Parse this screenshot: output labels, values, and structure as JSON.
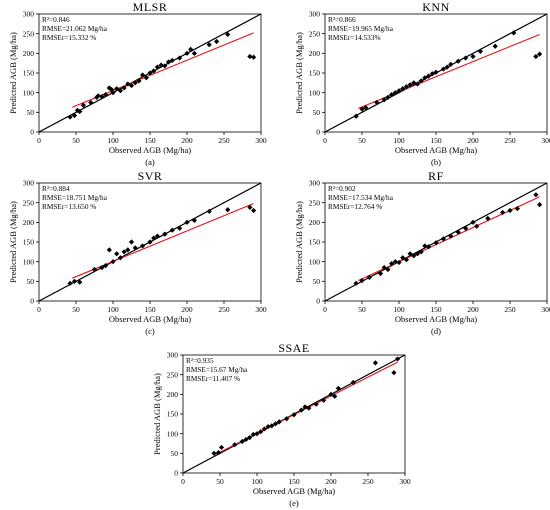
{
  "colors": {
    "points": "#000000",
    "one_to_one_line": "#000000",
    "fit_line": "#e8101a",
    "axes": "#000000",
    "background": "#ffffff"
  },
  "chart_data": [
    {
      "type": "scatter",
      "title": "MLSR",
      "panel_label": "(a)",
      "xlabel": "Observed AGB (Mg/ha)",
      "ylabel": "Predicted AGB (Mg/ha)",
      "xlim": [
        0,
        300
      ],
      "ylim": [
        0,
        300
      ],
      "xticks": [
        "0",
        "50",
        "100",
        "150",
        "200",
        "250",
        "300"
      ],
      "yticks": [
        "0",
        "50",
        "100",
        "150",
        "200",
        "250",
        "300"
      ],
      "stats": [
        "R²=0.846",
        "RMSE=21.062 Mg/ha",
        "RMSEr=15.332 %"
      ],
      "one_to_one": [
        [
          0,
          0
        ],
        [
          300,
          300
        ]
      ],
      "fit_line": [
        [
          45,
          63
        ],
        [
          290,
          252
        ]
      ],
      "points": [
        [
          42,
          38
        ],
        [
          48,
          42
        ],
        [
          52,
          55
        ],
        [
          55,
          52
        ],
        [
          60,
          68
        ],
        [
          70,
          75
        ],
        [
          78,
          88
        ],
        [
          80,
          92
        ],
        [
          85,
          90
        ],
        [
          90,
          95
        ],
        [
          95,
          112
        ],
        [
          98,
          108
        ],
        [
          100,
          100
        ],
        [
          105,
          110
        ],
        [
          110,
          105
        ],
        [
          115,
          112
        ],
        [
          120,
          122
        ],
        [
          125,
          118
        ],
        [
          130,
          125
        ],
        [
          135,
          130
        ],
        [
          140,
          145
        ],
        [
          145,
          138
        ],
        [
          150,
          150
        ],
        [
          155,
          155
        ],
        [
          160,
          165
        ],
        [
          165,
          170
        ],
        [
          170,
          168
        ],
        [
          175,
          178
        ],
        [
          180,
          182
        ],
        [
          190,
          188
        ],
        [
          200,
          200
        ],
        [
          205,
          210
        ],
        [
          210,
          200
        ],
        [
          230,
          222
        ],
        [
          240,
          230
        ],
        [
          255,
          248
        ],
        [
          285,
          192
        ],
        [
          290,
          190
        ]
      ]
    },
    {
      "type": "scatter",
      "title": "KNN",
      "panel_label": "(b)",
      "xlabel": "Observed AGB (Mg/ha)",
      "ylabel": "Predicted AGB (Mg/ha)",
      "xlim": [
        0,
        300
      ],
      "ylim": [
        0,
        300
      ],
      "xticks": [
        "0",
        "50",
        "100",
        "150",
        "200",
        "250",
        "300"
      ],
      "yticks": [
        "0",
        "50",
        "100",
        "150",
        "200",
        "250",
        "300"
      ],
      "stats": [
        "R²=0.866",
        "RMSE=19.965 Mg/ha",
        "RMSEr=14.533%"
      ],
      "one_to_one": [
        [
          0,
          0
        ],
        [
          300,
          300
        ]
      ],
      "fit_line": [
        [
          45,
          60
        ],
        [
          290,
          248
        ]
      ],
      "points": [
        [
          42,
          40
        ],
        [
          50,
          58
        ],
        [
          55,
          62
        ],
        [
          70,
          75
        ],
        [
          80,
          82
        ],
        [
          85,
          88
        ],
        [
          90,
          95
        ],
        [
          95,
          100
        ],
        [
          100,
          105
        ],
        [
          105,
          110
        ],
        [
          110,
          115
        ],
        [
          115,
          120
        ],
        [
          120,
          125
        ],
        [
          125,
          122
        ],
        [
          130,
          130
        ],
        [
          135,
          138
        ],
        [
          140,
          142
        ],
        [
          145,
          148
        ],
        [
          150,
          152
        ],
        [
          160,
          160
        ],
        [
          165,
          165
        ],
        [
          170,
          172
        ],
        [
          180,
          180
        ],
        [
          190,
          188
        ],
        [
          200,
          192
        ],
        [
          210,
          205
        ],
        [
          230,
          218
        ],
        [
          255,
          252
        ],
        [
          285,
          192
        ],
        [
          290,
          198
        ]
      ]
    },
    {
      "type": "scatter",
      "title": "SVR",
      "panel_label": "(c)",
      "xlabel": "Observed AGB (Mg/ha)",
      "ylabel": "Predicted AGB (Mg/ha)",
      "xlim": [
        0,
        300
      ],
      "ylim": [
        0,
        300
      ],
      "xticks": [
        "0",
        "50",
        "100",
        "150",
        "200",
        "250",
        "300"
      ],
      "yticks": [
        "0",
        "50",
        "100",
        "150",
        "200",
        "250",
        "300"
      ],
      "stats": [
        "R²=0.884",
        "RMSE=18.751 Mg/ha",
        "RMSEr=13.650 %"
      ],
      "one_to_one": [
        [
          0,
          0
        ],
        [
          300,
          300
        ]
      ],
      "fit_line": [
        [
          45,
          58
        ],
        [
          290,
          248
        ]
      ],
      "points": [
        [
          42,
          45
        ],
        [
          48,
          50
        ],
        [
          55,
          48
        ],
        [
          75,
          80
        ],
        [
          85,
          85
        ],
        [
          90,
          90
        ],
        [
          95,
          130
        ],
        [
          100,
          100
        ],
        [
          105,
          120
        ],
        [
          110,
          110
        ],
        [
          115,
          125
        ],
        [
          120,
          130
        ],
        [
          125,
          150
        ],
        [
          130,
          135
        ],
        [
          140,
          140
        ],
        [
          150,
          150
        ],
        [
          155,
          160
        ],
        [
          160,
          165
        ],
        [
          170,
          170
        ],
        [
          180,
          180
        ],
        [
          190,
          185
        ],
        [
          200,
          200
        ],
        [
          210,
          205
        ],
        [
          230,
          228
        ],
        [
          255,
          232
        ],
        [
          285,
          238
        ],
        [
          290,
          230
        ]
      ]
    },
    {
      "type": "scatter",
      "title": "RF",
      "panel_label": "(d)",
      "xlabel": "Observed AGB (Mg/ha)",
      "ylabel": "Predicted AGB (Mg/ha)",
      "xlim": [
        0,
        300
      ],
      "ylim": [
        0,
        300
      ],
      "xticks": [
        "0",
        "50",
        "100",
        "150",
        "200",
        "250",
        "300"
      ],
      "yticks": [
        "0",
        "50",
        "100",
        "150",
        "200",
        "250",
        "300"
      ],
      "stats": [
        "R²=0.902",
        "RMSE=17.534 Mg/ha",
        "RMSEr=12.764 %"
      ],
      "one_to_one": [
        [
          0,
          0
        ],
        [
          300,
          300
        ]
      ],
      "fit_line": [
        [
          45,
          52
        ],
        [
          290,
          265
        ]
      ],
      "points": [
        [
          42,
          45
        ],
        [
          50,
          52
        ],
        [
          60,
          60
        ],
        [
          75,
          70
        ],
        [
          80,
          85
        ],
        [
          85,
          80
        ],
        [
          90,
          95
        ],
        [
          95,
          100
        ],
        [
          100,
          98
        ],
        [
          105,
          110
        ],
        [
          110,
          105
        ],
        [
          115,
          120
        ],
        [
          120,
          115
        ],
        [
          125,
          120
        ],
        [
          130,
          125
        ],
        [
          135,
          140
        ],
        [
          140,
          138
        ],
        [
          150,
          148
        ],
        [
          160,
          158
        ],
        [
          170,
          165
        ],
        [
          180,
          175
        ],
        [
          190,
          185
        ],
        [
          200,
          200
        ],
        [
          205,
          190
        ],
        [
          220,
          210
        ],
        [
          240,
          225
        ],
        [
          250,
          230
        ],
        [
          260,
          235
        ],
        [
          285,
          270
        ],
        [
          290,
          245
        ]
      ]
    },
    {
      "type": "scatter",
      "title": "SSAE",
      "panel_label": "(e)",
      "xlabel": "Observed AGB (Mg/ha)",
      "ylabel": "Predicted AGB (Mg/ha)",
      "xlim": [
        0,
        300
      ],
      "ylim": [
        0,
        300
      ],
      "xticks": [
        "0",
        "50",
        "100",
        "150",
        "200",
        "250",
        "300"
      ],
      "yticks": [
        "0",
        "50",
        "100",
        "150",
        "200",
        "250",
        "300"
      ],
      "stats": [
        "R²=0.935",
        "RMSE=15.67 Mg/ha",
        "RMSEr=11.407 %"
      ],
      "one_to_one": [
        [
          0,
          0
        ],
        [
          300,
          300
        ]
      ],
      "fit_line": [
        [
          45,
          48
        ],
        [
          290,
          282
        ]
      ],
      "points": [
        [
          42,
          50
        ],
        [
          48,
          52
        ],
        [
          52,
          65
        ],
        [
          70,
          72
        ],
        [
          80,
          80
        ],
        [
          85,
          85
        ],
        [
          90,
          90
        ],
        [
          95,
          98
        ],
        [
          100,
          100
        ],
        [
          105,
          105
        ],
        [
          110,
          112
        ],
        [
          115,
          118
        ],
        [
          120,
          120
        ],
        [
          125,
          125
        ],
        [
          130,
          130
        ],
        [
          140,
          138
        ],
        [
          150,
          148
        ],
        [
          160,
          160
        ],
        [
          165,
          168
        ],
        [
          170,
          165
        ],
        [
          180,
          175
        ],
        [
          190,
          185
        ],
        [
          200,
          200
        ],
        [
          205,
          195
        ],
        [
          210,
          215
        ],
        [
          230,
          230
        ],
        [
          260,
          280
        ],
        [
          285,
          255
        ],
        [
          290,
          290
        ]
      ]
    }
  ]
}
